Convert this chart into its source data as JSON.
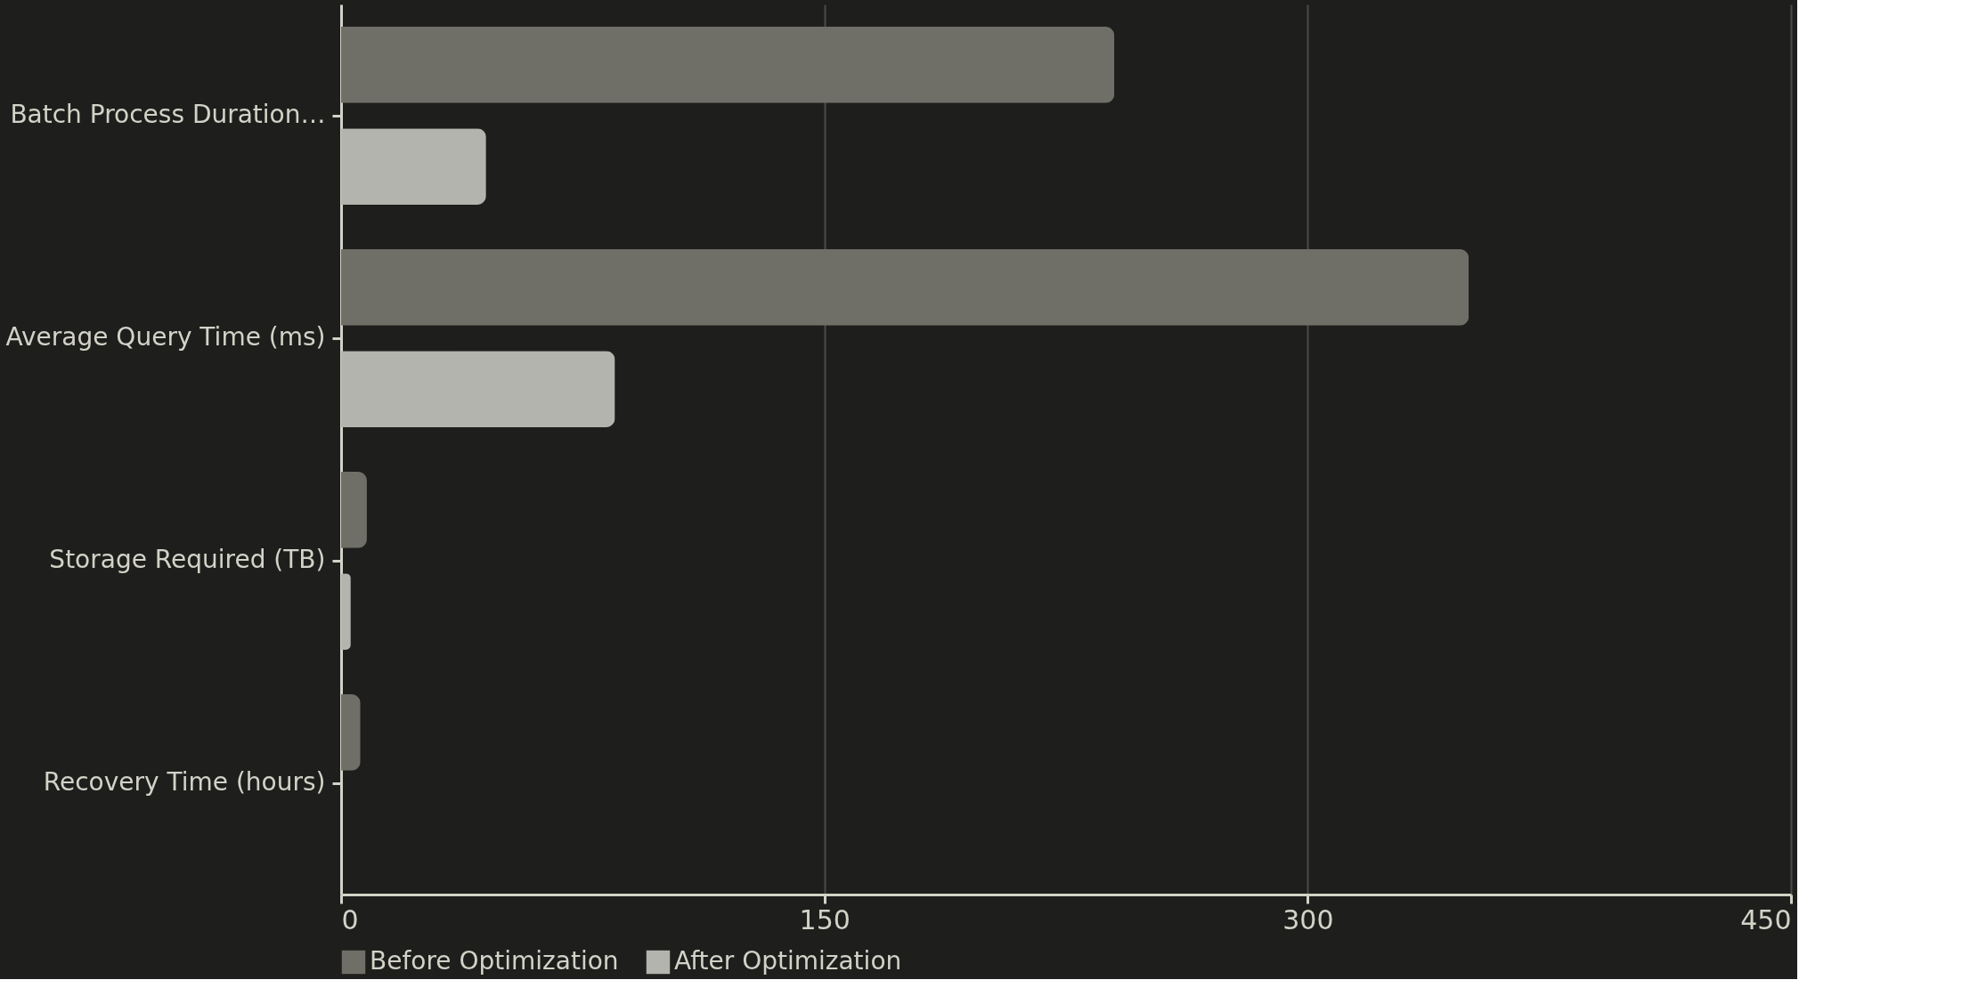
{
  "chart_data": {
    "type": "bar",
    "orientation": "horizontal",
    "categories": [
      "Batch Process Duration…",
      "Average Query Time (ms)",
      "Storage Required (TB)",
      "Recovery Time (hours)"
    ],
    "series": [
      {
        "name": "Before Optimization",
        "color": "#6f6f67",
        "values": [
          240,
          350,
          8,
          6
        ]
      },
      {
        "name": "After Optimization",
        "color": "#b3b4ae",
        "values": [
          45,
          85,
          3,
          null
        ]
      }
    ],
    "xlim": [
      0,
      450
    ],
    "xticks": [
      0,
      150,
      300,
      450
    ],
    "grid": "x",
    "legend": "bottom"
  }
}
